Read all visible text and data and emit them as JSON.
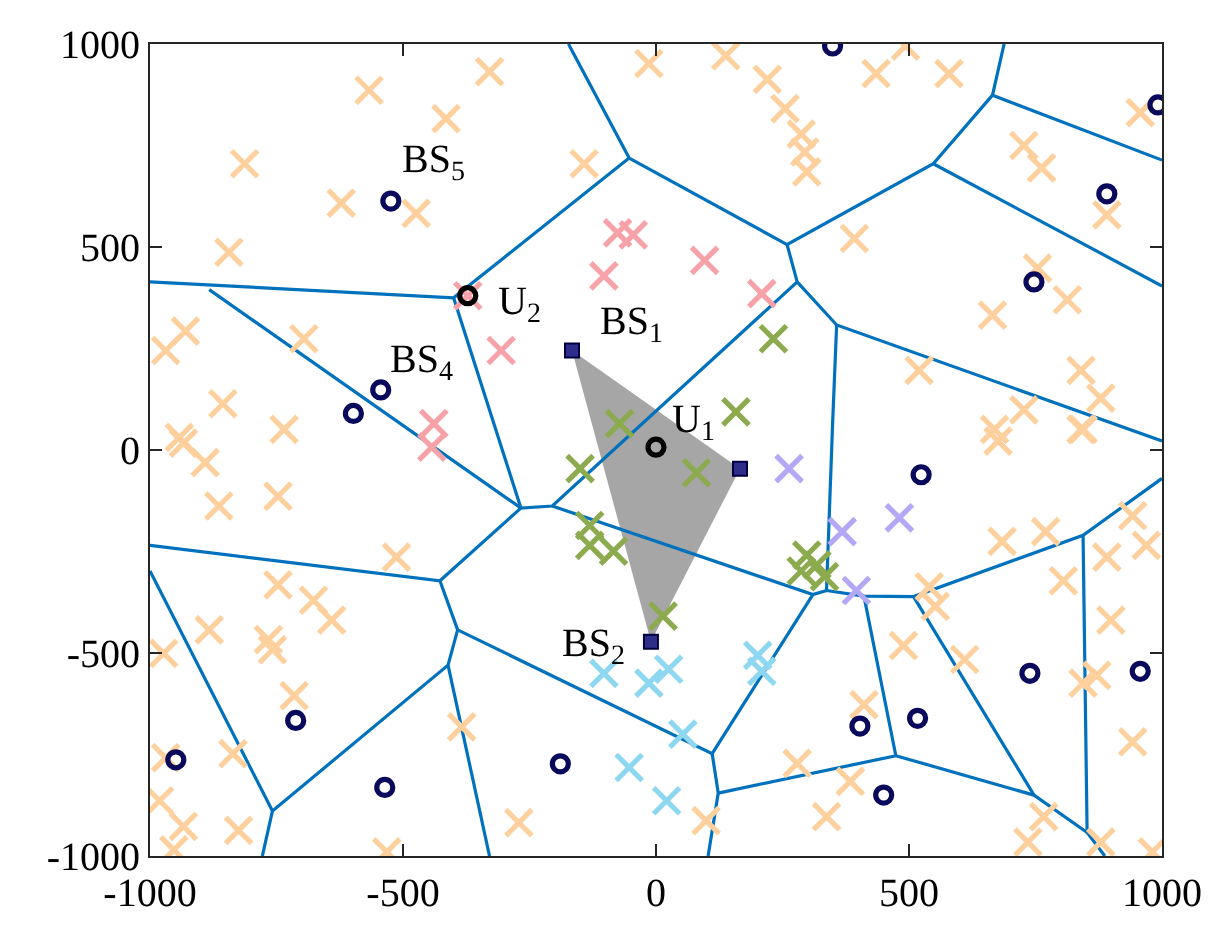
{
  "chart_data": {
    "type": "scatter",
    "xlim": [
      -1000,
      1000
    ],
    "ylim": [
      -1000,
      1000
    ],
    "xticks": [
      -1000,
      -500,
      0,
      500,
      1000
    ],
    "yticks": [
      -1000,
      -500,
      0,
      500,
      1000
    ],
    "series": [
      {
        "type": "area",
        "color": "#a6a6a6",
        "x": [
          -166,
          166,
          -10,
          -166
        ],
        "values": [
          245,
          -46,
          -472,
          245
        ]
      },
      {
        "type": "line",
        "color": "#0072bd",
        "marker": "none",
        "x": [
          -173,
          -53,
          259,
          null,
          -53,
          -400,
          -1000,
          null,
          -883,
          -267,
          null,
          -400,
          -267,
          -205,
          279,
          259,
          548,
          665,
          688,
          null,
          665,
          1000,
          null,
          548,
          1000,
          null,
          279,
          357,
          1000,
          null,
          357,
          349,
          337,
          310,
          -205,
          null,
          -267,
          -427,
          -1000,
          null,
          -427,
          -392,
          -411,
          -758,
          -1000,
          null,
          -758,
          -778,
          null,
          -411,
          -329,
          null,
          -392,
          111,
          310,
          null,
          111,
          123,
          103,
          null,
          123,
          474,
          411,
          null,
          337,
          411,
          509,
          844,
          1000,
          null,
          844,
          852,
          887,
          null,
          509,
          747,
          852,
          null,
          474,
          747
        ],
        "values": [
          1000,
          719,
          506,
          null,
          719,
          375,
          414,
          null,
          395,
          -143,
          null,
          375,
          -143,
          -138,
          414,
          506,
          705,
          874,
          1000,
          null,
          874,
          714,
          null,
          705,
          404,
          null,
          414,
          308,
          22,
          null,
          308,
          65,
          -346,
          -356,
          -138,
          null,
          -143,
          -322,
          -235,
          null,
          -322,
          -443,
          -530,
          -889,
          -298,
          null,
          -889,
          -1000,
          null,
          -530,
          -1000,
          null,
          -443,
          -748,
          -356,
          null,
          -748,
          -845,
          -1000,
          null,
          -845,
          -753,
          -360,
          null,
          -346,
          -360,
          -361,
          -210,
          -70,
          null,
          -210,
          -942,
          -1000,
          null,
          -361,
          -850,
          -942,
          null,
          -753,
          -850
        ]
      },
      {
        "color": "#fdd09e",
        "marker": "cross",
        "x": [
          -329,
          -567,
          -415,
          -813,
          -622,
          -474,
          -844,
          -142,
          -14,
          -930,
          -969,
          -696,
          -856,
          -735,
          -942,
          138,
          493,
          435,
          579,
          220,
          255,
          287,
          294,
          298,
          957,
          727,
          762,
          891,
          392,
          754,
          813,
          665,
          520,
          840,
          879,
          727,
          669,
          840,
          -934,
          -891,
          -864,
          -747,
          -513,
          -747,
          -677,
          -641,
          -883,
          -766,
          -758,
          -973,
          -715,
          -384,
          -969,
          -836,
          -981,
          -934,
          -825,
          -953,
          -532,
          -271,
          676,
          844,
          684,
          770,
          891,
          805,
          942,
          969,
          540,
          552,
          899,
          489,
          610,
          844,
          871,
          411,
          942,
          279,
          384,
          337,
          99,
          766,
          735,
          879,
          981
        ],
        "values": [
          932,
          886,
          816,
          705,
          608,
          583,
          487,
          705,
          952,
          293,
          245,
          274,
          114,
          51,
          31,
          971,
          995,
          927,
          927,
          913,
          841,
          778,
          734,
          685,
          831,
          750,
          695,
          579,
          521,
          448,
          370,
          332,
          196,
          196,
          128,
          99,
          51,
          51,
          17,
          -31,
          -138,
          -114,
          -264,
          -332,
          -370,
          -419,
          -443,
          -467,
          -492,
          -501,
          -605,
          -682,
          -758,
          -748,
          -864,
          -927,
          -937,
          -985,
          -990,
          -918,
          22,
          51,
          -225,
          -201,
          -264,
          -322,
          -162,
          -235,
          -337,
          -385,
          -419,
          -482,
          -516,
          -574,
          -555,
          -627,
          -719,
          -772,
          -816,
          -903,
          -913,
          -903,
          -966,
          -966,
          -990
        ]
      },
      {
        "color": "#f7a1a8",
        "marker": "cross",
        "x": [
          -76,
          -45,
          -103,
          -306,
          -439,
          -443,
          96,
          209,
          -372
        ],
        "values": [
          535,
          530,
          429,
          245,
          65,
          7,
          467,
          385,
          380
        ]
      },
      {
        "color": "#8cab4e",
        "marker": "cross",
        "x": [
          232,
          158,
          -72,
          -150,
          -131,
          -131,
          -84,
          14,
          80,
          298,
          318,
          287,
          333
        ],
        "values": [
          274,
          94,
          65,
          -46,
          -186,
          -235,
          -249,
          -409,
          -56,
          -259,
          -283,
          -298,
          -312
        ]
      },
      {
        "color": "#b4a7f5",
        "marker": "cross",
        "x": [
          263,
          368,
          481,
          396
        ],
        "values": [
          -46,
          -201,
          -167,
          -346
        ]
      },
      {
        "color": "#8dd8f0",
        "marker": "cross",
        "x": [
          -103,
          -14,
          25,
          -53,
          21,
          201,
          209,
          53
        ],
        "values": [
          -550,
          -574,
          -540,
          -782,
          -864,
          -506,
          -545,
          -700
        ]
      },
      {
        "color": "#0a0a5c",
        "marker": "circle",
        "x": [
          -524,
          -544,
          -598,
          349,
          992,
          891,
          747,
          524,
          739,
          957,
          403,
          517,
          450,
          -712,
          -536,
          -189,
          -949
        ],
        "values": [
          613,
          148,
          90,
          995,
          850,
          631,
          414,
          -61,
          -550,
          -545,
          -680,
          -661,
          -850,
          -666,
          -831,
          -773,
          -763
        ]
      },
      {
        "color": "#2e2e8a",
        "marker": "square",
        "x": [
          -166,
          -10,
          166
        ],
        "values": [
          245,
          -472,
          -46
        ]
      },
      {
        "color": "#000000",
        "marker": "circle",
        "x": [
          0,
          -372
        ],
        "values": [
          7,
          380
        ]
      }
    ],
    "annotations": [
      {
        "text": "BS$_{5}$",
        "x": -524,
        "y": 613
      },
      {
        "text": "BS$_{4}$",
        "x": -544,
        "y": 148
      },
      {
        "text": "BS$_{1}$",
        "x": -166,
        "y": 245
      },
      {
        "text": "BS$_{2}$",
        "x": -10,
        "y": -472
      },
      {
        "text": "U$_{1}$",
        "x": 0,
        "y": 7
      },
      {
        "text": "U$_{2}$",
        "x": -372,
        "y": 380
      }
    ]
  }
}
